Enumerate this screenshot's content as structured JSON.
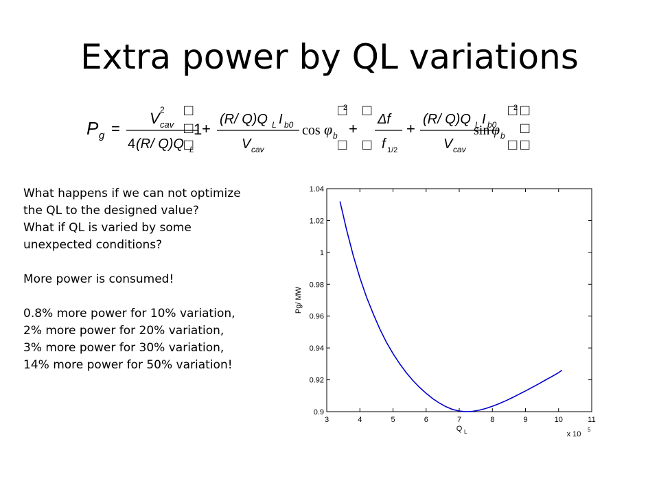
{
  "slide": {
    "title": "Extra power by QL variations",
    "text_lines": [
      "What happens if we can not optimize",
      "the QL to the designed value?",
      "What if QL is varied by some",
      "unexpected conditions?",
      "",
      "More power is consumed!",
      "",
      "0.8% more power for 10% variation,",
      "2% more power for 20% variation,",
      "3% more power for 30% variation,",
      "14% more power for 50% variation!"
    ]
  },
  "formula": {
    "lhs": "P",
    "lhs_sub": "g",
    "equals": "=",
    "V": "V",
    "two": "2",
    "cav": "cav",
    "four": "4",
    "RQ": "(R/ Q)Q",
    "L": "L",
    "one": "1",
    "plus": "+",
    "I": "I",
    "b0": "b0",
    "cos": "cos",
    "sin": "sin",
    "phi": "φ",
    "b": "b",
    "delta_f": "Δf",
    "f": "f",
    "half": "1/2",
    "box": "□"
  },
  "chart_data": {
    "type": "line",
    "ylabel": "Pg/ MW",
    "xlabel_main": "Q",
    "xlabel_sub": "L",
    "x_multiplier": "x 10",
    "x_multiplier_exp": "5",
    "xlim": [
      3,
      11
    ],
    "ylim": [
      0.9,
      1.04
    ],
    "x_ticks": [
      "3",
      "4",
      "5",
      "6",
      "7",
      "8",
      "9",
      "10",
      "11"
    ],
    "y_ticks": [
      "0.9",
      "0.92",
      "0.94",
      "0.96",
      "0.98",
      "1",
      "1.02",
      "1.04"
    ],
    "grid": false,
    "series": [
      {
        "color": "#0000cc",
        "x": [
          3.4,
          3.6,
          3.8,
          4.0,
          4.2,
          4.4,
          4.6,
          4.8,
          5.0,
          5.2,
          5.4,
          5.6,
          5.8,
          6.0,
          6.2,
          6.4,
          6.6,
          6.8,
          7.0,
          7.2,
          7.4,
          7.6,
          7.8,
          8.0,
          8.2,
          8.4,
          8.6,
          8.8,
          9.0,
          9.2,
          9.4,
          9.6,
          9.8,
          10.0,
          10.1
        ],
        "y": [
          1.032,
          1.014,
          0.998,
          0.984,
          0.972,
          0.9615,
          0.952,
          0.9437,
          0.9365,
          0.9301,
          0.9245,
          0.9196,
          0.9153,
          0.9115,
          0.9082,
          0.9054,
          0.9031,
          0.9014,
          0.9004,
          0.9,
          0.9002,
          0.9009,
          0.902,
          0.9034,
          0.905,
          0.9068,
          0.9088,
          0.9109,
          0.913,
          0.9152,
          0.9175,
          0.9198,
          0.9221,
          0.9245,
          0.926
        ]
      }
    ]
  }
}
